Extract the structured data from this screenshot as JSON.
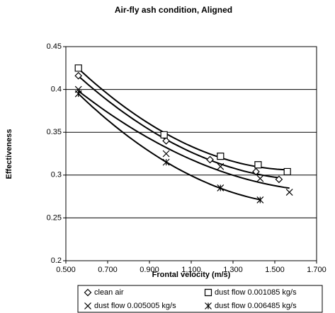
{
  "chart_data": {
    "type": "scatter",
    "title": "Air-fly ash condition, Aligned",
    "x_label": "Frontal velocity (m/s)",
    "y_label": "Effectiveness",
    "xlim": [
      0.5,
      1.7
    ],
    "xticks": [
      {
        "value": 0.5,
        "label": "0.500"
      },
      {
        "value": 0.7,
        "label": "0.700"
      },
      {
        "value": 0.9,
        "label": "0.900"
      },
      {
        "value": 1.1,
        "label": "1.100"
      },
      {
        "value": 1.3,
        "label": "1.300"
      },
      {
        "value": 1.5,
        "label": "1.500"
      },
      {
        "value": 1.7,
        "label": "1.700"
      }
    ],
    "ylim": [
      0.2,
      0.45
    ],
    "yticks": [
      0.2,
      0.25,
      0.3,
      0.35,
      0.4,
      0.45
    ],
    "grid": true,
    "trendline": true,
    "legend": "bottom",
    "series": [
      {
        "name": "clean air",
        "color": "#000000",
        "marker": "diamond",
        "x": [
          0.56,
          0.98,
          1.19,
          1.41,
          1.52
        ],
        "values": [
          0.416,
          0.34,
          0.318,
          0.304,
          0.295
        ]
      },
      {
        "name": "dust flow  0.001085 kg/s",
        "color": "#000000",
        "marker": "square",
        "x": [
          0.56,
          0.97,
          1.24,
          1.42,
          1.56
        ],
        "values": [
          0.425,
          0.347,
          0.322,
          0.312,
          0.304
        ]
      },
      {
        "name": "dust flow  0.005005 kg/s",
        "color": "#000000",
        "marker": "cross",
        "x": [
          0.56,
          0.98,
          1.24,
          1.43,
          1.57
        ],
        "values": [
          0.4,
          0.325,
          0.31,
          0.296,
          0.28
        ]
      },
      {
        "name": "dust flow  0.006485 kg/s",
        "color": "#000000",
        "marker": "star",
        "x": [
          0.56,
          0.98,
          1.24,
          1.43
        ],
        "values": [
          0.395,
          0.315,
          0.285,
          0.271
        ]
      }
    ]
  }
}
